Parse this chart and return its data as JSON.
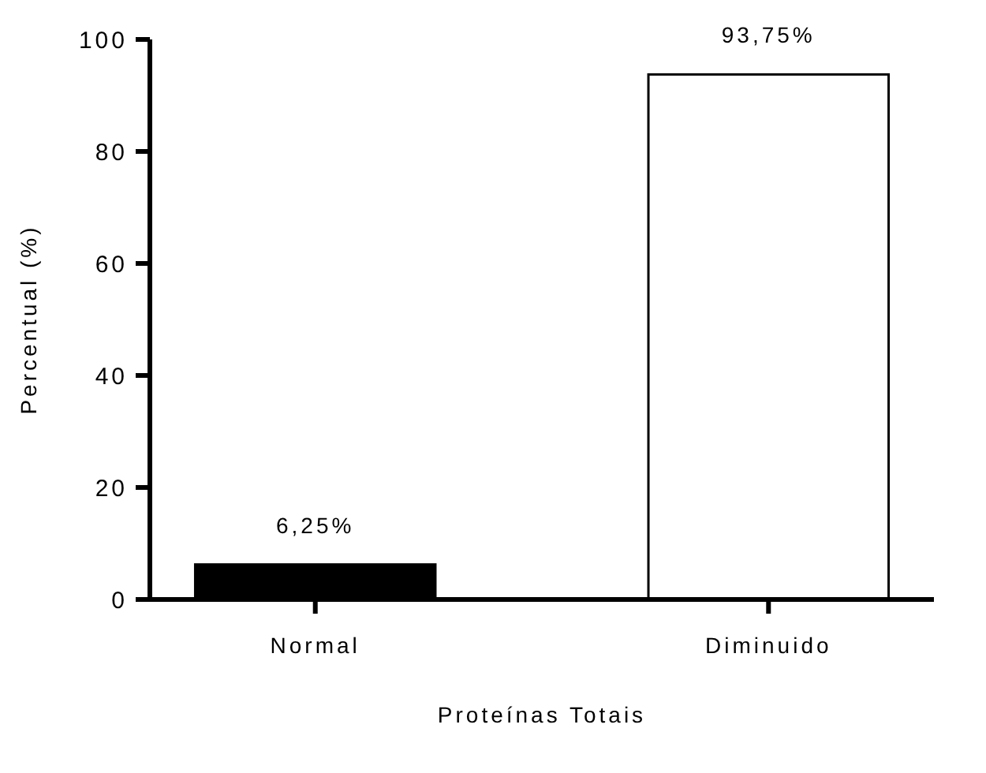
{
  "chart_data": {
    "type": "bar",
    "xlabel": "Proteínas Totais",
    "ylabel": "Percentual (%)",
    "categories": [
      "Normal",
      "Diminuido"
    ],
    "values": [
      6.25,
      93.75
    ],
    "colors": [
      "#000000",
      "#ffffff"
    ],
    "value_labels": [
      "6,25%",
      "93,75%"
    ],
    "ylim": [
      0,
      100
    ],
    "yticks": [
      0,
      20,
      40,
      60,
      80,
      100
    ]
  }
}
